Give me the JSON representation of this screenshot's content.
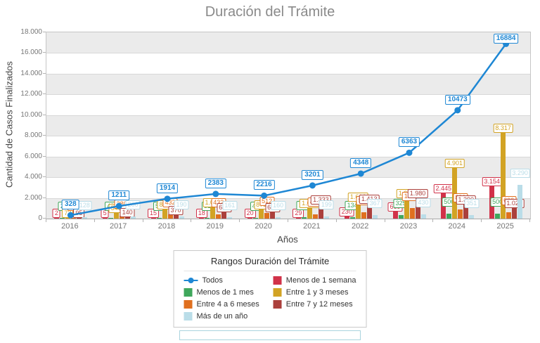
{
  "chart_data": {
    "type": "bar",
    "title": "Duración del Trámite",
    "xlabel": "Años",
    "ylabel": "Cantidad de Casos Finalizados",
    "legend_title": "Rangos Duración del Trámite",
    "legend_position": "bottom",
    "grid": true,
    "ylim": [
      0,
      18000
    ],
    "y_tick_step": 2000,
    "categories": [
      "2016",
      "2017",
      "2018",
      "2019",
      "2020",
      "2021",
      "2022",
      "2023",
      "2024",
      "2025"
    ],
    "line_series": {
      "name": "Todos",
      "color": "#1e87d4",
      "values": [
        328,
        1211,
        1914,
        2383,
        2216,
        3201,
        4348,
        6363,
        10473,
        16884
      ]
    },
    "bar_series": [
      {
        "name": "Menos de 1 semana",
        "color": "#d13249",
        "values": [
          2,
          5,
          15,
          18,
          20,
          29,
          230,
          669,
          2445,
          3154
        ]
      },
      {
        "name": "Menos de 1 mes",
        "color": "#3fa75c",
        "values": [
          2,
          40,
          52,
          61,
          48,
          169,
          134,
          325,
          506,
          500
        ]
      },
      {
        "name": "Entre 1 y 3 meses",
        "color": "#d2a324",
        "values": [
          73,
          546,
          855,
          1069,
          873,
          1029,
          1616,
          1939,
          4901,
          8317
        ]
      },
      {
        "name": "Entre 4 a 6 meses",
        "color": "#e0701f",
        "values": [
          28,
          280,
          432,
          432,
          512,
          442,
          588,
          1020,
          880,
          600
        ]
      },
      {
        "name": "Entre 7 y 12 meses",
        "color": "#ab403c",
        "values": [
          95,
          140,
          370,
          642,
          603,
          1333,
          1413,
          1980,
          1390,
          1023
        ]
      },
      {
        "name": "Más de un año",
        "color": "#badde8",
        "values": [
          128,
          200,
          190,
          161,
          160,
          199,
          367,
          430,
          351,
          3290
        ]
      }
    ]
  },
  "bottom_panel": {
    "border_color": "#a9d4de"
  },
  "colors": {
    "band_gray": "#ebebeb",
    "gridline": "#d8d8d8",
    "axis_text": "#767676",
    "title_text": "#8a8a8a"
  }
}
